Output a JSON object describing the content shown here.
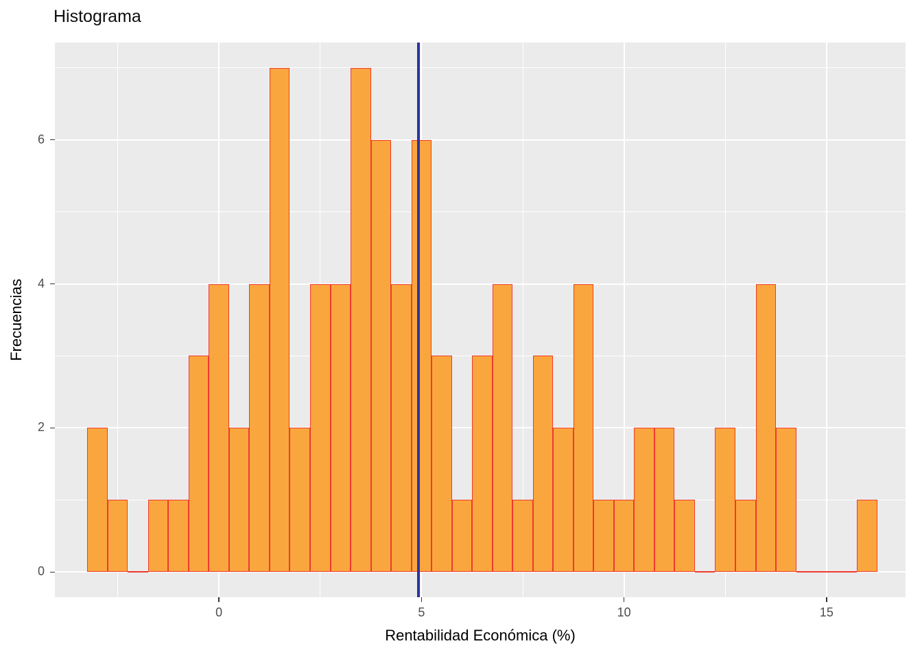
{
  "chart_data": {
    "type": "bar",
    "subtype": "histogram",
    "title": "Histograma",
    "xlabel": "Rentabilidad Económica (%)",
    "ylabel": "Frecuencias",
    "bin_start": -3.25,
    "bin_width": 0.5,
    "counts": [
      2,
      1,
      0,
      1,
      1,
      3,
      4,
      2,
      4,
      7,
      2,
      4,
      4,
      7,
      6,
      4,
      6,
      3,
      1,
      3,
      4,
      1,
      3,
      2,
      4,
      1,
      1,
      2,
      2,
      1,
      0,
      2,
      1,
      4,
      2,
      0,
      0,
      0,
      1
    ],
    "x_ticks": [
      0,
      5,
      10,
      15
    ],
    "y_ticks": [
      0,
      2,
      4,
      6
    ],
    "x_minor": [
      -2.5,
      2.5,
      7.5,
      12.5
    ],
    "y_minor": [
      1,
      3,
      5,
      7
    ],
    "x_domain": [
      -4.05,
      16.95
    ],
    "y_domain": [
      -0.35,
      7.35
    ],
    "vline_x": 4.93,
    "legend": "none",
    "grid": "on",
    "colors": {
      "bar_fill": "#FAA63E",
      "bar_border": "#EE3B2B",
      "vline": "#2A35A2",
      "panel_bg": "#EBEBEB",
      "grid": "#FFFFFF",
      "tick_mark": "#333333",
      "tick_text": "#4D4D4D",
      "title_text": "#0D0D0D"
    }
  }
}
